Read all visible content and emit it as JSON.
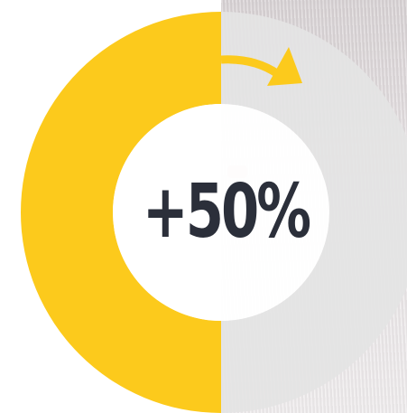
{
  "chart_data": {
    "type": "pie",
    "donut": true,
    "categories": [
      "",
      ""
    ],
    "values": [
      50,
      50
    ],
    "colors": [
      "#fcca1c",
      "#e4e4e4"
    ],
    "center_label": "+50%",
    "annotation": "arrow-right"
  },
  "colors": {
    "accent": "#fcca1c",
    "track": "#e4e4e4",
    "text": "#2b2f3a"
  },
  "icons": {
    "arrow": "curved-arrow-icon"
  }
}
